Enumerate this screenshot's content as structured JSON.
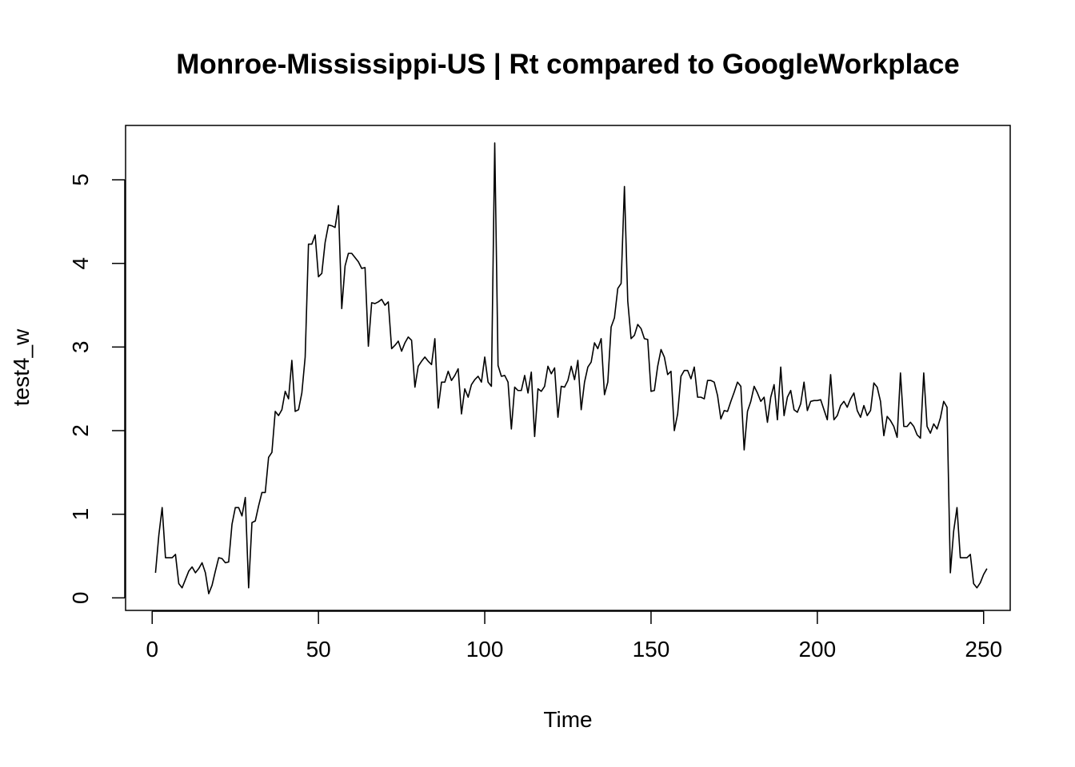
{
  "chart_data": {
    "type": "line",
    "title": "Monroe-Mississippi-US | Rt compared to GoogleWorkplace",
    "xlabel": "Time",
    "ylabel": "test4_w",
    "xlim": [
      -8,
      258
    ],
    "ylim": [
      -0.15,
      5.65
    ],
    "x_ticks": [
      0,
      50,
      100,
      150,
      200,
      250
    ],
    "y_ticks": [
      0,
      1,
      2,
      3,
      4,
      5
    ],
    "grid": false,
    "legend": "none",
    "line_color": "#000000",
    "series": [
      {
        "x_start": 1,
        "values": [
          0.3,
          0.75,
          1.08,
          0.48,
          0.48,
          0.48,
          0.52,
          0.17,
          0.12,
          0.22,
          0.32,
          0.37,
          0.3,
          0.35,
          0.42,
          0.3,
          0.05,
          0.15,
          0.32,
          0.48,
          0.47,
          0.42,
          0.43,
          0.88,
          1.08,
          1.08,
          0.98,
          1.2,
          0.12,
          0.9,
          0.92,
          1.1,
          1.26,
          1.26,
          1.68,
          1.74,
          2.23,
          2.18,
          2.25,
          2.47,
          2.38,
          2.84,
          2.23,
          2.25,
          2.45,
          2.88,
          4.23,
          4.23,
          4.34,
          3.84,
          3.88,
          4.25,
          4.46,
          4.45,
          4.43,
          4.69,
          3.46,
          3.97,
          4.12,
          4.12,
          4.07,
          4.02,
          3.94,
          3.95,
          3.01,
          3.53,
          3.52,
          3.54,
          3.57,
          3.5,
          3.54,
          2.98,
          3.02,
          3.07,
          2.95,
          3.05,
          3.12,
          3.08,
          2.52,
          2.77,
          2.83,
          2.88,
          2.83,
          2.79,
          3.1,
          2.27,
          2.58,
          2.58,
          2.71,
          2.6,
          2.66,
          2.74,
          2.2,
          2.5,
          2.4,
          2.55,
          2.61,
          2.65,
          2.58,
          2.88,
          2.58,
          2.53,
          5.44,
          2.78,
          2.65,
          2.66,
          2.58,
          2.02,
          2.52,
          2.48,
          2.48,
          2.66,
          2.45,
          2.7,
          1.93,
          2.5,
          2.47,
          2.53,
          2.77,
          2.68,
          2.75,
          2.16,
          2.53,
          2.52,
          2.6,
          2.77,
          2.61,
          2.84,
          2.25,
          2.58,
          2.76,
          2.82,
          3.05,
          2.98,
          3.1,
          2.43,
          2.58,
          3.24,
          3.35,
          3.7,
          3.76,
          4.92,
          3.55,
          3.1,
          3.14,
          3.27,
          3.22,
          3.1,
          3.09,
          2.47,
          2.48,
          2.77,
          2.97,
          2.88,
          2.67,
          2.71,
          2.0,
          2.2,
          2.65,
          2.72,
          2.72,
          2.62,
          2.76,
          2.4,
          2.4,
          2.38,
          2.6,
          2.6,
          2.58,
          2.42,
          2.14,
          2.24,
          2.23,
          2.35,
          2.46,
          2.58,
          2.53,
          1.77,
          2.23,
          2.35,
          2.53,
          2.45,
          2.35,
          2.4,
          2.1,
          2.4,
          2.55,
          2.13,
          2.76,
          2.18,
          2.4,
          2.48,
          2.25,
          2.22,
          2.32,
          2.58,
          2.24,
          2.35,
          2.36,
          2.36,
          2.37,
          2.25,
          2.13,
          2.67,
          2.13,
          2.18,
          2.3,
          2.35,
          2.28,
          2.38,
          2.45,
          2.24,
          2.16,
          2.3,
          2.18,
          2.24,
          2.57,
          2.52,
          2.35,
          1.94,
          2.17,
          2.12,
          2.05,
          1.92,
          2.69,
          2.05,
          2.05,
          2.1,
          2.05,
          1.95,
          1.91,
          2.69,
          2.05,
          1.97,
          2.08,
          2.02,
          2.15,
          2.35,
          2.28,
          0.3,
          0.8,
          1.08,
          0.48,
          0.48,
          0.48,
          0.52,
          0.17,
          0.12,
          0.18,
          0.28,
          0.35
        ]
      }
    ]
  }
}
